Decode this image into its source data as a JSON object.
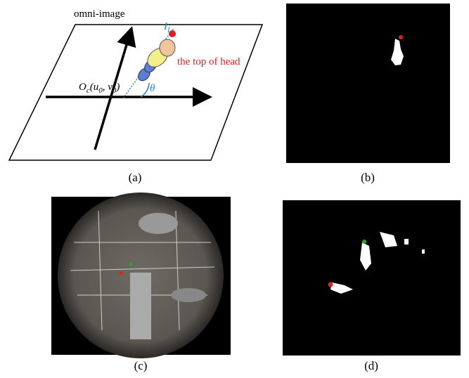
{
  "diagram": {
    "title": "omni-image",
    "line_label": {
      "main": "I",
      "sub": "L"
    },
    "annotation": "the top of head",
    "origin_label": [
      "O",
      "c",
      "(u",
      "0",
      ", v",
      "0",
      ")"
    ],
    "angle_label": "θ"
  },
  "panels": [
    {
      "label": "(a)"
    },
    {
      "label": "(b)"
    },
    {
      "label": "(c)"
    },
    {
      "label": "(d)"
    }
  ]
}
